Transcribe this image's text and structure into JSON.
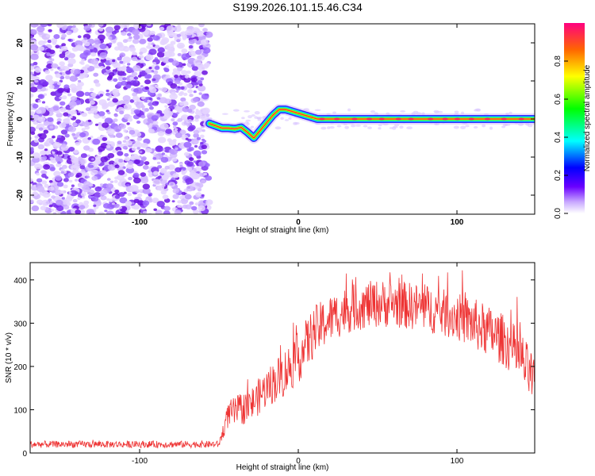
{
  "title": "S199.2026.101.15.46.C34",
  "chart_data": [
    {
      "type": "heatmap",
      "description_role": "spectrogram",
      "xlabel": "Height of straight line (km)",
      "ylabel": "Frequency (Hz)",
      "xlim": [
        -169,
        149
      ],
      "ylim": [
        -25,
        25
      ],
      "xticks": [
        -100,
        0,
        100
      ],
      "xtick_labels": [
        "-100",
        "0",
        "100"
      ],
      "yticks": [
        -20,
        -10,
        0,
        10,
        20
      ],
      "ytick_labels": [
        "-20",
        "-10",
        "0",
        "10",
        "20"
      ],
      "noise_region_x": [
        -169,
        -56
      ],
      "ridge": {
        "x": [
          -56,
          -52,
          -48,
          -44,
          -40,
          -36,
          -32,
          -28,
          -24,
          -20,
          -16,
          -12,
          -8,
          -4,
          0,
          4,
          8,
          12,
          20,
          40,
          60,
          80,
          100,
          120,
          149
        ],
        "freq": [
          -1.2,
          -1.8,
          -2.4,
          -2.4,
          -2.6,
          -2.2,
          -3.5,
          -5,
          -3,
          -1,
          1,
          2.5,
          2.5,
          2,
          1.5,
          1,
          0.5,
          0,
          0,
          0,
          0,
          0,
          0,
          0,
          0
        ]
      },
      "colorbar": {
        "label": "Normalized spectral amplitude",
        "range": [
          0,
          1
        ],
        "ticks": [
          0.0,
          0.2,
          0.4,
          0.6,
          0.8
        ],
        "tick_labels": [
          "0.0",
          "0.2",
          "0.4",
          "0.6",
          "0.8"
        ]
      }
    },
    {
      "type": "line",
      "xlabel": "Height of straight line (km)",
      "ylabel": "SNR (10 * v/v)",
      "xlim": [
        -169,
        149
      ],
      "ylim": [
        0,
        440
      ],
      "xticks": [
        -100,
        0,
        100
      ],
      "xtick_labels": [
        "-100",
        "0",
        "100"
      ],
      "yticks": [
        0,
        100,
        200,
        300,
        400
      ],
      "ytick_labels": [
        "0",
        "100",
        "200",
        "300",
        "400"
      ],
      "series": [
        {
          "name": "SNR",
          "color": "#ee3333",
          "envelope": {
            "x": [
              -169,
              -50,
              -44,
              -40,
              -30,
              -20,
              -10,
              0,
              10,
              20,
              30,
              40,
              50,
              60,
              70,
              80,
              90,
              100,
              110,
              120,
              130,
              140,
              149
            ],
            "mean": [
              20,
              20,
              90,
              95,
              110,
              150,
              180,
              220,
              280,
              310,
              330,
              340,
              345,
              345,
              340,
              335,
              325,
              315,
              300,
              280,
              260,
              220,
              160
            ],
            "spread": [
              8,
              8,
              30,
              35,
              40,
              45,
              55,
              60,
              60,
              55,
              55,
              55,
              55,
              55,
              55,
              55,
              55,
              55,
              60,
              60,
              60,
              65,
              60
            ]
          }
        }
      ]
    }
  ]
}
